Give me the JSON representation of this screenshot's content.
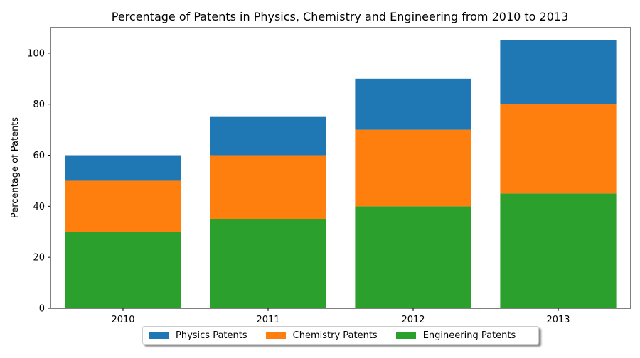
{
  "chart_data": {
    "type": "bar",
    "stacked": true,
    "title": "Percentage of Patents in Physics, Chemistry and Engineering from 2010 to 2013",
    "xlabel": "",
    "ylabel": "Percentage of Patents",
    "categories": [
      "2010",
      "2011",
      "2012",
      "2013"
    ],
    "ylim": [
      0,
      110
    ],
    "yticks": [
      0,
      20,
      40,
      60,
      80,
      100
    ],
    "grid": false,
    "legend_position": "bottom-center",
    "series": [
      {
        "name": "Engineering Patents",
        "color": "#2ca02c",
        "values": [
          30,
          35,
          40,
          45
        ]
      },
      {
        "name": "Chemistry Patents",
        "color": "#ff7f0e",
        "values": [
          20,
          25,
          30,
          35
        ]
      },
      {
        "name": "Physics Patents",
        "color": "#1f77b4",
        "values": [
          10,
          15,
          20,
          25
        ]
      }
    ],
    "legend_order": [
      "Physics Patents",
      "Chemistry Patents",
      "Engineering Patents"
    ]
  }
}
